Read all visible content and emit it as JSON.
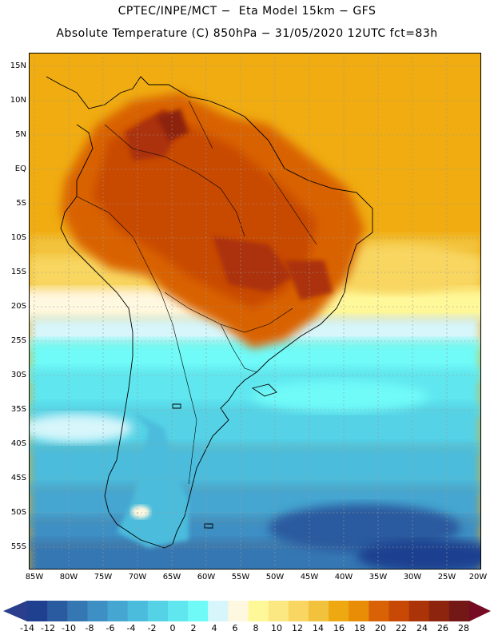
{
  "header": {
    "line1": "CPTEC/INPE/MCT −  Eta Model 15km − GFS",
    "line2": "Absolute Temperature (C) 850hPa − 31/05/2020 12UTC fct=83h"
  },
  "lat_labels": [
    "15N",
    "10N",
    "5N",
    "EQ",
    "5S",
    "10S",
    "15S",
    "20S",
    "25S",
    "30S",
    "35S",
    "40S",
    "45S",
    "50S",
    "55S"
  ],
  "lon_labels": [
    "85W",
    "80W",
    "75W",
    "70W",
    "65W",
    "60W",
    "55W",
    "50W",
    "45W",
    "40W",
    "35W",
    "30W",
    "25W",
    "20W"
  ],
  "colorbar": {
    "labels": [
      "-14",
      "-12",
      "-10",
      "-8",
      "-6",
      "-4",
      "-2",
      "0",
      "2",
      "4",
      "6",
      "8",
      "10",
      "12",
      "14",
      "16",
      "18",
      "20",
      "22",
      "24",
      "26",
      "28"
    ],
    "colors": [
      "#1f3f8f",
      "#2a5a9f",
      "#3577b3",
      "#3d8fc4",
      "#45a6d1",
      "#4cbcdc",
      "#55d2e6",
      "#5fe6ef",
      "#6ffaf8",
      "#d6f6fb",
      "#fff8e0",
      "#fff899",
      "#fbe882",
      "#f8d661",
      "#f2c23c",
      "#eea812",
      "#e98d06",
      "#d96206",
      "#c84906",
      "#ab3308",
      "#8d240e",
      "#731717"
    ],
    "low_color": "#2a3e8d",
    "high_color": "#740b22"
  },
  "palette": {
    "ocean_warm": "#f0ac10",
    "frame": "#000000",
    "grid": "#9a9a9a"
  }
}
